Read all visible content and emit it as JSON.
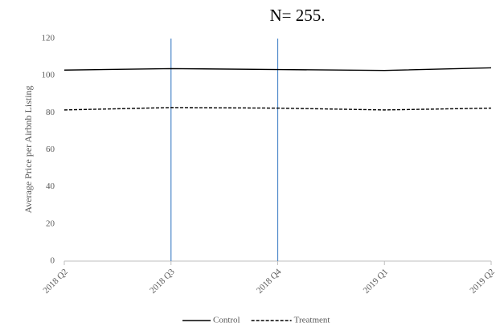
{
  "chart_data": {
    "type": "line",
    "title": "N= 255.",
    "y_label": "Average Price per Airbnb Listing",
    "categories": [
      "2018 Q2",
      "2018 Q3",
      "2018 Q4",
      "2019 Q1",
      "2019 Q2"
    ],
    "series": [
      {
        "name": "Control",
        "color": "#000000",
        "dash": "solid",
        "values": [
          103,
          103.8,
          103.3,
          102.8,
          104.2
        ]
      },
      {
        "name": "Treatment",
        "color": "#000000",
        "dash": "dashed",
        "values": [
          81.5,
          82.8,
          82.5,
          81.5,
          82.5
        ]
      }
    ],
    "vertical_lines": {
      "at": [
        "2018 Q3",
        "2018 Q4"
      ],
      "color": "#4a86c8"
    },
    "ylim": [
      0,
      120
    ],
    "yticks": [
      0,
      20,
      40,
      60,
      80,
      100,
      120
    ],
    "grid": false,
    "legend": "bottom"
  }
}
